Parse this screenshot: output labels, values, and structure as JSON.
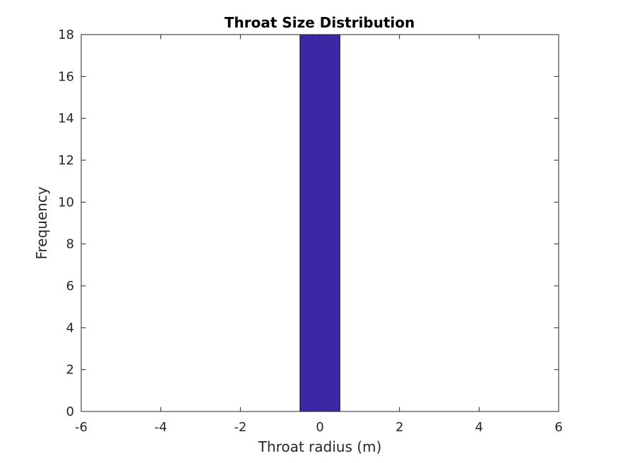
{
  "chart_data": {
    "type": "bar",
    "title": "Throat Size Distribution",
    "xlabel": "Throat radius (m)",
    "ylabel": "Frequency",
    "xlim": [
      -6,
      6
    ],
    "ylim": [
      0,
      18
    ],
    "x_ticks": [
      -6,
      -4,
      -2,
      0,
      2,
      4,
      6
    ],
    "y_ticks": [
      0,
      2,
      4,
      6,
      8,
      10,
      12,
      14,
      16,
      18
    ],
    "bins": [
      {
        "x_start": -0.5,
        "x_end": 0.5,
        "value": 18
      }
    ],
    "bar_color": "#3c28a4",
    "bar_edge_color": "#000000",
    "grid": false,
    "legend": "none"
  }
}
